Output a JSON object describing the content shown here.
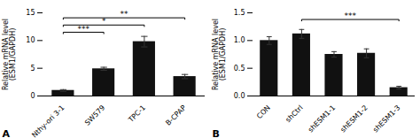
{
  "chart_data": [
    {
      "type": "bar",
      "title": "A",
      "categories": [
        "Nthy-ori 3-1",
        "SW579",
        "TPC-1",
        "B-CPAP"
      ],
      "values": [
        1.0,
        4.9,
        9.8,
        3.5
      ],
      "errors": [
        0.15,
        0.28,
        0.95,
        0.38
      ],
      "ylabel": "Relative mRNA level\n(ESM1/GAPDH)",
      "ylim": [
        0,
        15
      ],
      "yticks": [
        0,
        5,
        10,
        15
      ],
      "color": "#111111",
      "grid": false,
      "annotations": [
        {
          "text": "***",
          "from": "Nthy-ori 3-1",
          "to": "SW579",
          "y": 11.5
        },
        {
          "text": "*",
          "from": "Nthy-ori 3-1",
          "to": "TPC-1",
          "y": 12.8
        },
        {
          "text": "**",
          "from": "Nthy-ori 3-1",
          "to": "B-CPAP",
          "y": 14.1
        }
      ]
    },
    {
      "type": "bar",
      "title": "B",
      "categories": [
        "CON",
        "shCtrl",
        "shESM1-1",
        "shESM1-2",
        "shESM1-3"
      ],
      "values": [
        1.0,
        1.12,
        0.75,
        0.77,
        0.15
      ],
      "errors": [
        0.07,
        0.08,
        0.05,
        0.08,
        0.025
      ],
      "ylabel": "Relative mRNA level\n(ESM1/GAPDH)",
      "ylim": [
        0,
        1.5
      ],
      "yticks": [
        {
          "value": 0.0,
          "label": "0.0"
        },
        0.5,
        {
          "value": 1.0,
          "label": "1.0"
        },
        1.5
      ],
      "color": "#111111",
      "grid": false,
      "annotations": [
        {
          "text": "***",
          "from": "shCtrl",
          "to": "shESM1-3",
          "y": 1.38
        }
      ]
    }
  ]
}
